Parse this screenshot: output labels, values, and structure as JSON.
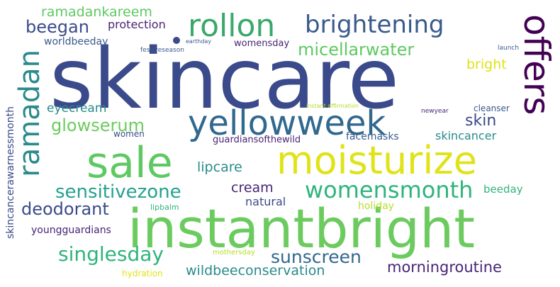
{
  "words": {
    "skincare": "skincare",
    "instantbright": "instantbright",
    "yellowweek": "yellowweek",
    "moisturize": "moisturize",
    "sale": "sale",
    "offers": "offers",
    "ramadan": "ramadan",
    "rollon": "rollon",
    "brightening": "brightening",
    "womensmonth": "womensmonth",
    "sensitivezone": "sensitivezone",
    "glowserum": "glowserum",
    "micellarwater": "micellarwater",
    "singlesday": "singlesday",
    "sunscreen": "sunscreen",
    "deodorant": "deodorant",
    "morningroutine": "morningroutine",
    "wildbeeconservation": "wildbeeconservation",
    "beegan": "beegan",
    "ramadankareem": "ramadankareem",
    "protection": "protection",
    "worldbeeday": "worldbeeday",
    "earthday": "earthday",
    "festiveseason": "festiveseason",
    "womensday": "womensday",
    "launch": "launch",
    "bright": "bright",
    "eyecream": "eyecream",
    "skin": "skin",
    "cleanser": "cleanser",
    "newyear": "newyear",
    "instant_affirmation": "instant affirmation",
    "women": "women",
    "facemasks": "facemasks",
    "skincancer": "skincancer",
    "guardiansofthewild": "guardiansofthewild",
    "lipcare": "lipcare",
    "cream": "cream",
    "natural": "natural",
    "beeday": "beeday",
    "holiday": "holiday",
    "lipbalm": "lipbalm",
    "youngguardians": "youngguardians",
    "mothersday": "mothersday",
    "hydration": "hydration",
    "skincancerawarnessmonth": "skincancerawarnessmonth"
  },
  "colors": {
    "indigo": "#3b4a8a",
    "slate": "#3b5a8c",
    "teal": "#2a8a8c",
    "green": "#3aa86b",
    "lightgreen": "#6ccb5f",
    "lime": "#b5de2b",
    "yellow": "#dfe318",
    "purple": "#482475",
    "darkpurple": "#440154"
  }
}
